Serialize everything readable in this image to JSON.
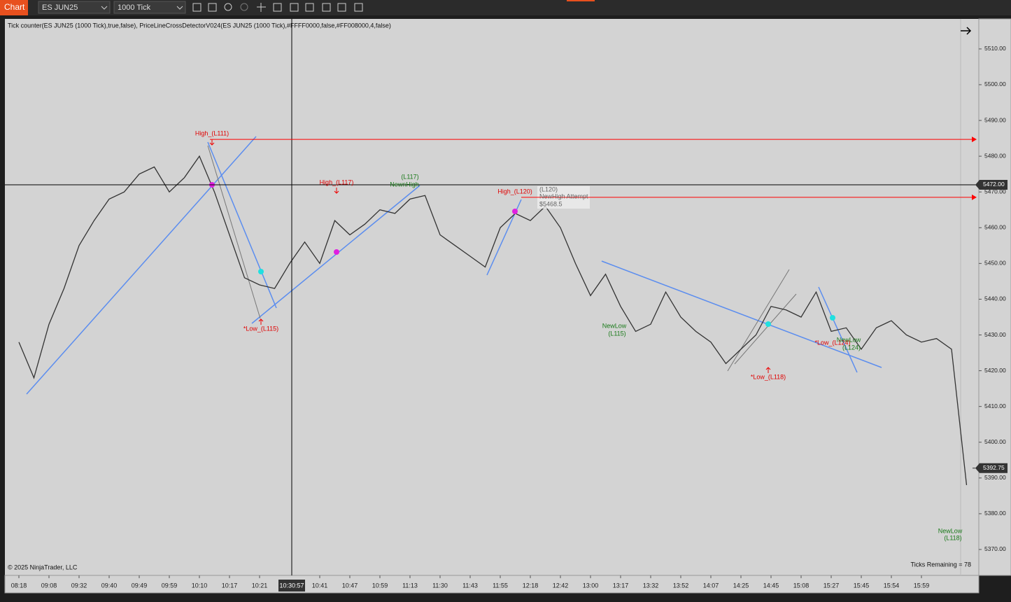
{
  "toolbar": {
    "app_label": "Chart",
    "instrument": "ES JUN25",
    "interval": "1000 Tick"
  },
  "indicator_header": "Tick counter(ES JUN25 (1000 Tick),true,false), PriceLineCrossDetectorV024(ES JUN25 (1000 Tick),#FFFF0000,false,#FF008000,4,false)",
  "copyright": "© 2025 NinjaTrader, LLC",
  "ticks_remaining": "Ticks Remaining = 78",
  "chart_data": {
    "type": "line",
    "categories": [
      "08:18",
      null,
      "09:08",
      null,
      "09:32",
      null,
      "09:40",
      null,
      "09:49",
      null,
      "09:59",
      null,
      "10:10",
      null,
      "10:17",
      null,
      "10:21",
      null,
      null,
      null,
      "10:41",
      null,
      "10:47",
      null,
      "10:59",
      null,
      "11:13",
      null,
      "11:30",
      null,
      "11:43",
      null,
      "11:55",
      null,
      "12:18",
      null,
      "12:42",
      null,
      "13:00",
      null,
      "13:17",
      null,
      "13:32",
      null,
      "13:52",
      null,
      "14:07",
      null,
      "14:25",
      null,
      "14:45",
      null,
      "15:08",
      null,
      "15:27",
      null,
      "15:45",
      null,
      "15:54",
      null,
      "15:59",
      null,
      null,
      null
    ],
    "series": [
      {
        "name": "ES JUN25",
        "color": "#333333",
        "values": [
          5428,
          5418,
          5433,
          5443,
          5455,
          5462,
          5468,
          5470,
          5475,
          5477,
          5470,
          5474,
          5480,
          5470,
          5458,
          5446,
          5444,
          5443,
          5450,
          5456,
          5450,
          5462,
          5458,
          5461,
          5465,
          5464,
          5468,
          5469,
          5458,
          5455,
          5452,
          5449,
          5460,
          5464,
          5462,
          5466,
          5460,
          5450,
          5441,
          5447,
          5438,
          5431,
          5433,
          5442,
          5435,
          5431,
          5428,
          5422,
          5426,
          5430,
          5438,
          5437,
          5435,
          5442,
          5431,
          5432,
          5426,
          5432,
          5434,
          5430,
          5428,
          5429,
          5426,
          5388
        ]
      }
    ],
    "ylim": [
      5362.75,
      5518.4
    ],
    "yticks": [
      {
        "value": 5370,
        "label": "5370.00"
      },
      {
        "value": 5380,
        "label": "5380.00"
      },
      {
        "value": 5390,
        "label": "5390.00"
      },
      {
        "value": 5400,
        "label": "5400.00"
      },
      {
        "value": 5410,
        "label": "5410.00"
      },
      {
        "value": 5420,
        "label": "5420.00"
      },
      {
        "value": 5430,
        "label": "5430.00"
      },
      {
        "value": 5440,
        "label": "5440.00"
      },
      {
        "value": 5450,
        "label": "5450.00"
      },
      {
        "value": 5460,
        "label": "5460.00"
      },
      {
        "value": 5470,
        "label": "5470.00"
      },
      {
        "value": 5480,
        "label": "5480.00"
      },
      {
        "value": 5490,
        "label": "5490.00"
      },
      {
        "value": 5500,
        "label": "5500.00"
      },
      {
        "value": 5510,
        "label": "5510.00"
      }
    ],
    "levels": [
      {
        "value": 5484.7,
        "color": "#ff0000"
      },
      {
        "value": 5468.5,
        "color": "#ff0000"
      }
    ],
    "crosshair": {
      "x_label": "10:30:57",
      "y": {
        "value": 5472,
        "label": "5472.00"
      }
    },
    "last_price": {
      "value": 5392.75,
      "label": "5392.75"
    },
    "annotations": [
      "High_(L111)",
      "*Low_(L115)",
      "High_(L117)",
      "(L117)",
      "NewnHigh",
      "High_(L120)",
      "(L120)",
      "NewHigh Attempt",
      "$5468.5",
      "NewLow",
      "(L115)",
      "*Low_(L118)",
      "*Low_(L124)",
      "NewLow",
      "(L124)",
      "NewLow",
      "(L118)"
    ]
  }
}
